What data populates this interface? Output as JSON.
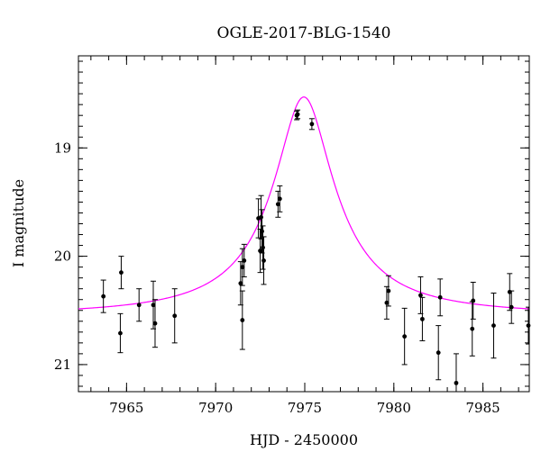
{
  "chart_data": {
    "type": "scatter",
    "title": "OGLE-2017-BLG-1540",
    "xlabel": "HJD - 2450000",
    "ylabel": "I magnitude",
    "xlim": [
      7962.3,
      7987.6
    ],
    "ylim": [
      21.25,
      18.15
    ],
    "y_inverted": true,
    "grid": false,
    "x_ticks": [
      7965,
      7970,
      7975,
      7980,
      7985
    ],
    "y_ticks": [
      19,
      20,
      21
    ],
    "x_minor_step": 1,
    "y_minor_step": 0.1,
    "marker_color": "#000000",
    "model_color": "#ff00ff",
    "model": {
      "t0": 7974.95,
      "peak_mag": 18.53,
      "base_mag": 20.55,
      "width_days": 1.35
    },
    "series": [
      {
        "points": [
          {
            "x": 7963.7,
            "y": 20.37,
            "err": 0.15
          },
          {
            "x": 7964.7,
            "y": 20.15,
            "err": 0.15
          },
          {
            "x": 7964.65,
            "y": 20.71,
            "err": 0.18
          },
          {
            "x": 7965.7,
            "y": 20.45,
            "err": 0.15
          },
          {
            "x": 7966.5,
            "y": 20.45,
            "err": 0.22
          },
          {
            "x": 7966.6,
            "y": 20.62,
            "err": 0.22
          },
          {
            "x": 7967.7,
            "y": 20.55,
            "err": 0.25
          },
          {
            "x": 7971.4,
            "y": 20.25,
            "err": 0.2
          },
          {
            "x": 7971.5,
            "y": 20.1,
            "err": 0.17
          },
          {
            "x": 7971.5,
            "y": 20.59,
            "err": 0.27
          },
          {
            "x": 7971.6,
            "y": 20.04,
            "err": 0.15
          },
          {
            "x": 7972.4,
            "y": 19.65,
            "err": 0.18
          },
          {
            "x": 7972.5,
            "y": 19.95,
            "err": 0.2
          },
          {
            "x": 7972.55,
            "y": 19.64,
            "err": 0.2
          },
          {
            "x": 7972.6,
            "y": 19.77,
            "err": 0.2
          },
          {
            "x": 7972.65,
            "y": 19.92,
            "err": 0.2
          },
          {
            "x": 7972.7,
            "y": 20.04,
            "err": 0.22
          },
          {
            "x": 7973.5,
            "y": 19.52,
            "err": 0.12
          },
          {
            "x": 7973.6,
            "y": 19.47,
            "err": 0.12
          },
          {
            "x": 7974.55,
            "y": 18.7,
            "err": 0.04
          },
          {
            "x": 7974.6,
            "y": 18.69,
            "err": 0.04
          },
          {
            "x": 7975.4,
            "y": 18.78,
            "err": 0.05
          },
          {
            "x": 7979.6,
            "y": 20.43,
            "err": 0.15
          },
          {
            "x": 7979.7,
            "y": 20.32,
            "err": 0.14
          },
          {
            "x": 7980.6,
            "y": 20.74,
            "err": 0.26
          },
          {
            "x": 7981.5,
            "y": 20.36,
            "err": 0.17
          },
          {
            "x": 7981.6,
            "y": 20.58,
            "err": 0.2
          },
          {
            "x": 7982.5,
            "y": 20.89,
            "err": 0.25
          },
          {
            "x": 7982.6,
            "y": 20.38,
            "err": 0.17
          },
          {
            "x": 7983.5,
            "y": 21.17,
            "err": 0.27
          },
          {
            "x": 7984.45,
            "y": 20.41,
            "err": 0.17
          },
          {
            "x": 7984.4,
            "y": 20.67,
            "err": 0.25
          },
          {
            "x": 7985.6,
            "y": 20.64,
            "err": 0.3
          },
          {
            "x": 7986.5,
            "y": 20.33,
            "err": 0.17
          },
          {
            "x": 7986.6,
            "y": 20.47,
            "err": 0.15
          },
          {
            "x": 7987.55,
            "y": 20.64,
            "err": 0.17
          }
        ]
      }
    ]
  }
}
